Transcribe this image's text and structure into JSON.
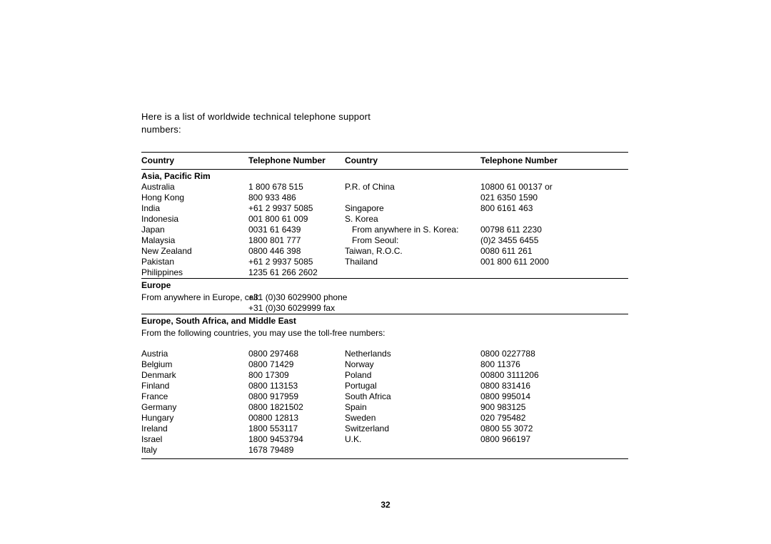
{
  "intro": "Here is a list of worldwide technical telephone support numbers:",
  "page_number": "32",
  "header": {
    "country": "Country",
    "tel": "Telephone Number"
  },
  "asia": {
    "title": "Asia, Pacific Rim",
    "left": [
      {
        "c": "Australia",
        "t": "1 800 678 515"
      },
      {
        "c": "Hong Kong",
        "t": "800 933 486"
      },
      {
        "c": "India",
        "t": "+61 2 9937 5085"
      },
      {
        "c": "Indonesia",
        "t": "001 800 61 009"
      },
      {
        "c": "Japan",
        "t": "0031 61 6439"
      },
      {
        "c": "Malaysia",
        "t": "1800 801 777"
      },
      {
        "c": "New Zealand",
        "t": "0800 446 398"
      },
      {
        "c": "Pakistan",
        "t": "+61 2 9937 5085"
      },
      {
        "c": "Philippines",
        "t": "1235 61 266 2602"
      }
    ],
    "right": [
      {
        "c": "P.R. of China",
        "t": "10800 61 00137 or"
      },
      {
        "c": "",
        "t": "021 6350 1590"
      },
      {
        "c": "Singapore",
        "t": "800 6161 463"
      },
      {
        "c": "S. Korea",
        "t": ""
      },
      {
        "c": "   From anywhere in S. Korea:",
        "t": "00798 611 2230"
      },
      {
        "c": "   From Seoul:",
        "t": "(0)2 3455 6455"
      },
      {
        "c": "Taiwan, R.O.C.",
        "t": "0080 611 261"
      },
      {
        "c": "Thailand",
        "t": "001 800 611 2000"
      },
      {
        "c": "",
        "t": ""
      }
    ]
  },
  "europe_call": {
    "title": "Europe",
    "label": "From anywhere in Europe, call:",
    "phone": "+31 (0)30 6029900 phone",
    "fax": "+31 (0)30 6029999 fax"
  },
  "eme": {
    "title": "Europe, South Africa, and Middle East",
    "note": "From the following countries, you may use the toll-free numbers:",
    "left": [
      {
        "c": "Austria",
        "t": "0800 297468"
      },
      {
        "c": "Belgium",
        "t": "0800 71429"
      },
      {
        "c": "Denmark",
        "t": "800 17309"
      },
      {
        "c": "Finland",
        "t": "0800 113153"
      },
      {
        "c": "France",
        "t": "0800 917959"
      },
      {
        "c": "Germany",
        "t": "0800 1821502"
      },
      {
        "c": "Hungary",
        "t": "00800 12813"
      },
      {
        "c": "Ireland",
        "t": "1800 553117"
      },
      {
        "c": "Israel",
        "t": "1800 9453794"
      },
      {
        "c": "Italy",
        "t": "1678 79489"
      }
    ],
    "right": [
      {
        "c": "Netherlands",
        "t": "0800 0227788"
      },
      {
        "c": "Norway",
        "t": "800 11376"
      },
      {
        "c": "Poland",
        "t": "00800 3111206"
      },
      {
        "c": "Portugal",
        "t": "0800 831416"
      },
      {
        "c": "South Africa",
        "t": "0800 995014"
      },
      {
        "c": "Spain",
        "t": "900 983125"
      },
      {
        "c": "Sweden",
        "t": "020 795482"
      },
      {
        "c": "Switzerland",
        "t": "0800 55 3072"
      },
      {
        "c": "U.K.",
        "t": "0800 966197"
      },
      {
        "c": "",
        "t": ""
      }
    ]
  }
}
